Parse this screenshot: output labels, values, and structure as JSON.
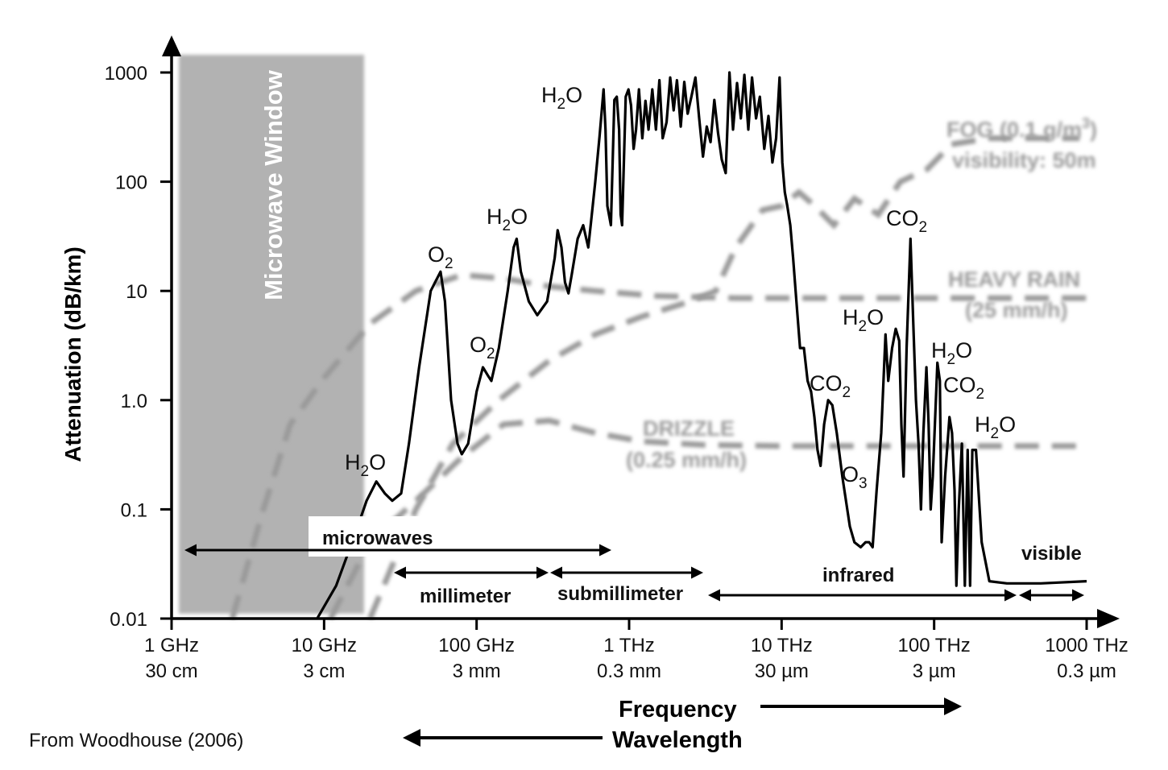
{
  "chart_data": {
    "type": "line",
    "title": "",
    "ylabel": "Attenuation (dB/km)",
    "xlabel": "Frequency",
    "xlabel2": "Wavelength",
    "yscale": "log",
    "xscale": "log",
    "ylim": [
      0.01,
      1000
    ],
    "xlim_hz": [
      1000000000.0,
      1000000000000000.0
    ],
    "y_ticks": [
      "1000",
      "100",
      "10",
      "1.0",
      "0.1",
      "0.01"
    ],
    "x_ticks": [
      {
        "freq": "1 GHz",
        "wave": "30 cm"
      },
      {
        "freq": "10 GHz",
        "wave": "3 cm"
      },
      {
        "freq": "100 GHz",
        "wave": "3 mm"
      },
      {
        "freq": "1 THz",
        "wave": "0.3 mm"
      },
      {
        "freq": "10 THz",
        "wave": "30 µm"
      },
      {
        "freq": "100 THz",
        "wave": "3 µm"
      },
      {
        "freq": "1000 THz",
        "wave": "0.3 µm"
      }
    ],
    "microwave_window_label": "Microwave Window",
    "microwave_window_ghz": [
      1,
      12
    ],
    "series": [
      {
        "kind": "atmospheric",
        "color": "#000000",
        "points_ghz_db": [
          [
            9,
            0.01
          ],
          [
            12,
            0.02
          ],
          [
            16,
            0.06
          ],
          [
            19,
            0.12
          ],
          [
            22,
            0.18
          ],
          [
            25,
            0.14
          ],
          [
            28,
            0.12
          ],
          [
            32,
            0.14
          ],
          [
            36,
            0.4
          ],
          [
            42,
            2
          ],
          [
            50,
            10
          ],
          [
            58,
            15
          ],
          [
            62,
            8
          ],
          [
            68,
            1
          ],
          [
            75,
            0.4
          ],
          [
            80,
            0.32
          ],
          [
            88,
            0.4
          ],
          [
            100,
            1.2
          ],
          [
            110,
            2
          ],
          [
            118,
            1.7
          ],
          [
            125,
            1.5
          ],
          [
            140,
            3
          ],
          [
            160,
            10
          ],
          [
            175,
            25
          ],
          [
            183,
            30
          ],
          [
            195,
            15
          ],
          [
            220,
            8
          ],
          [
            250,
            6
          ],
          [
            290,
            8
          ],
          [
            325,
            20
          ],
          [
            340,
            36
          ],
          [
            360,
            25
          ],
          [
            380,
            12
          ],
          [
            400,
            9.5
          ],
          [
            420,
            14
          ],
          [
            460,
            30
          ],
          [
            500,
            40
          ],
          [
            540,
            25
          ],
          [
            560,
            40
          ],
          [
            600,
            100
          ],
          [
            640,
            260
          ],
          [
            680,
            700
          ],
          [
            700,
            300
          ],
          [
            720,
            60
          ],
          [
            760,
            40
          ],
          [
            800,
            560
          ],
          [
            830,
            600
          ],
          [
            860,
            300
          ],
          [
            880,
            50
          ],
          [
            900,
            40
          ],
          [
            950,
            600
          ],
          [
            990,
            700
          ],
          [
            1030,
            500
          ],
          [
            1070,
            200
          ],
          [
            1110,
            300
          ],
          [
            1160,
            700
          ],
          [
            1220,
            250
          ],
          [
            1280,
            550
          ],
          [
            1340,
            300
          ],
          [
            1420,
            700
          ],
          [
            1500,
            300
          ],
          [
            1580,
            850
          ],
          [
            1660,
            250
          ],
          [
            1760,
            350
          ],
          [
            1860,
            900
          ],
          [
            1960,
            450
          ],
          [
            2060,
            850
          ],
          [
            2180,
            320
          ],
          [
            2300,
            820
          ],
          [
            2420,
            420
          ],
          [
            2560,
            600
          ],
          [
            2720,
            900
          ],
          [
            2880,
            380
          ],
          [
            3050,
            170
          ],
          [
            3230,
            320
          ],
          [
            3420,
            230
          ],
          [
            3620,
            560
          ],
          [
            3830,
            280
          ],
          [
            4050,
            160
          ],
          [
            4300,
            120
          ],
          [
            4550,
            1000
          ],
          [
            4800,
            300
          ],
          [
            5100,
            800
          ],
          [
            5400,
            380
          ],
          [
            5700,
            950
          ],
          [
            6050,
            300
          ],
          [
            6400,
            900
          ],
          [
            6800,
            380
          ],
          [
            7200,
            600
          ],
          [
            7700,
            200
          ],
          [
            8200,
            400
          ],
          [
            8700,
            150
          ],
          [
            9200,
            250
          ],
          [
            9700,
            900
          ],
          [
            10100,
            150
          ],
          [
            10500,
            80
          ],
          [
            10900,
            60
          ],
          [
            11400,
            40
          ],
          [
            11900,
            20
          ],
          [
            12500,
            8
          ],
          [
            13200,
            3
          ],
          [
            14000,
            3
          ],
          [
            14800,
            1.5
          ],
          [
            15600,
            1.2
          ],
          [
            16400,
            0.7
          ],
          [
            17200,
            0.35
          ],
          [
            18000,
            0.25
          ],
          [
            19000,
            0.6
          ],
          [
            20200,
            1
          ],
          [
            21500,
            0.9
          ],
          [
            23000,
            0.5
          ],
          [
            25000,
            0.2
          ],
          [
            28000,
            0.07
          ],
          [
            30000,
            0.05
          ],
          [
            33000,
            0.045
          ],
          [
            35500,
            0.05
          ],
          [
            37500,
            0.05
          ],
          [
            39500,
            0.045
          ],
          [
            42000,
            0.15
          ],
          [
            45000,
            0.5
          ],
          [
            48000,
            4
          ],
          [
            50000,
            1.5
          ],
          [
            53000,
            3
          ],
          [
            56000,
            4.5
          ],
          [
            59000,
            3.5
          ],
          [
            61000,
            0.6
          ],
          [
            63000,
            0.2
          ],
          [
            66000,
            3
          ],
          [
            70000,
            30
          ],
          [
            73000,
            5
          ],
          [
            76000,
            1
          ],
          [
            79000,
            0.4
          ],
          [
            82000,
            0.1
          ],
          [
            85000,
            0.5
          ],
          [
            89000,
            2
          ],
          [
            92000,
            0.6
          ],
          [
            95000,
            0.1
          ],
          [
            98000,
            0.2
          ],
          [
            105000,
            2.2
          ],
          [
            109000,
            1.5
          ],
          [
            112000,
            0.05
          ],
          [
            118000,
            0.2
          ],
          [
            126000,
            0.7
          ],
          [
            131000,
            0.5
          ],
          [
            136000,
            0.15
          ],
          [
            140000,
            0.02
          ],
          [
            145000,
            0.1
          ],
          [
            152000,
            0.4
          ],
          [
            159000,
            0.02
          ],
          [
            166000,
            0.35
          ],
          [
            172000,
            0.02
          ],
          [
            178000,
            0.35
          ],
          [
            188000,
            0.35
          ],
          [
            205000,
            0.05
          ],
          [
            230000,
            0.022
          ],
          [
            300000,
            0.021
          ],
          [
            500000,
            0.021
          ],
          [
            1000000,
            0.022
          ]
        ]
      },
      {
        "name": "FOG (0.1 g/m³)",
        "kind": "fog",
        "color": "#9a9a9a",
        "points_ghz_db": [
          [
            20,
            0.01
          ],
          [
            40,
            0.1
          ],
          [
            70,
            0.4
          ],
          [
            140,
            1
          ],
          [
            300,
            2.3
          ],
          [
            600,
            4
          ],
          [
            1200,
            5.8
          ],
          [
            2500,
            8
          ],
          [
            3700,
            10
          ],
          [
            5000,
            25
          ],
          [
            7500,
            55
          ],
          [
            10000,
            60
          ],
          [
            13000,
            80
          ],
          [
            16500,
            60
          ],
          [
            22000,
            40
          ],
          [
            30000,
            70
          ],
          [
            43000,
            50
          ],
          [
            60000,
            100
          ],
          [
            90000,
            130
          ],
          [
            130000,
            220
          ],
          [
            230000,
            250
          ],
          [
            900000,
            250
          ]
        ]
      },
      {
        "name": "HEAVY RAIN",
        "kind": "rain",
        "color": "#9a9a9a",
        "points_ghz_db": [
          [
            2.5,
            0.01
          ],
          [
            4,
            0.1
          ],
          [
            6,
            0.6
          ],
          [
            10,
            1.6
          ],
          [
            20,
            5
          ],
          [
            40,
            10
          ],
          [
            80,
            14
          ],
          [
            150,
            13
          ],
          [
            300,
            11
          ],
          [
            600,
            10
          ],
          [
            1500,
            9
          ],
          [
            5000,
            8.6
          ],
          [
            20000,
            8.6
          ],
          [
            100000,
            8.6
          ],
          [
            1000000,
            8.6
          ]
        ]
      },
      {
        "name": "DRIZZLE",
        "kind": "drizzle",
        "color": "#9a9a9a",
        "points_ghz_db": [
          [
            11,
            0.01
          ],
          [
            20,
            0.05
          ],
          [
            40,
            0.12
          ],
          [
            80,
            0.3
          ],
          [
            150,
            0.6
          ],
          [
            300,
            0.65
          ],
          [
            600,
            0.5
          ],
          [
            1200,
            0.42
          ],
          [
            3000,
            0.39
          ],
          [
            10000,
            0.38
          ],
          [
            40000,
            0.38
          ],
          [
            200000,
            0.38
          ],
          [
            1000000,
            0.38
          ]
        ]
      }
    ],
    "curve_labels": {
      "fog_line1": "FOG (0.1 g/m",
      "fog_sup": "3",
      "fog_close": ")",
      "fog_line2": "visibility: 50m",
      "rain_line1": "HEAVY RAIN",
      "rain_line2": "(25 mm/h)",
      "drizzle_line1": "DRIZZLE",
      "drizzle_line2": "(0.25 mm/h)"
    },
    "absorption_labels": [
      {
        "base": "H",
        "sub": "2",
        "rest": "O"
      },
      {
        "base": "O",
        "sub": "2",
        "rest": ""
      },
      {
        "base": "O",
        "sub": "2",
        "rest": ""
      },
      {
        "base": "H",
        "sub": "2",
        "rest": "O"
      },
      {
        "base": "H",
        "sub": "2",
        "rest": "O"
      },
      {
        "base": "CO",
        "sub": "2",
        "rest": ""
      },
      {
        "base": "CO",
        "sub": "2",
        "rest": ""
      },
      {
        "base": "O",
        "sub": "3",
        "rest": ""
      },
      {
        "base": "H",
        "sub": "2",
        "rest": "O"
      },
      {
        "base": "H",
        "sub": "2",
        "rest": "O"
      },
      {
        "base": "CO",
        "sub": "2",
        "rest": ""
      },
      {
        "base": "H",
        "sub": "2",
        "rest": "O"
      }
    ],
    "bands": [
      {
        "label": "microwaves"
      },
      {
        "label": "millimeter"
      },
      {
        "label": "submillimeter"
      },
      {
        "label": "infrared"
      },
      {
        "label": "visible"
      }
    ],
    "axis_arrows": {
      "frequency": "Frequency",
      "wavelength": "Wavelength"
    }
  },
  "source_note": "From Woodhouse (2006)"
}
